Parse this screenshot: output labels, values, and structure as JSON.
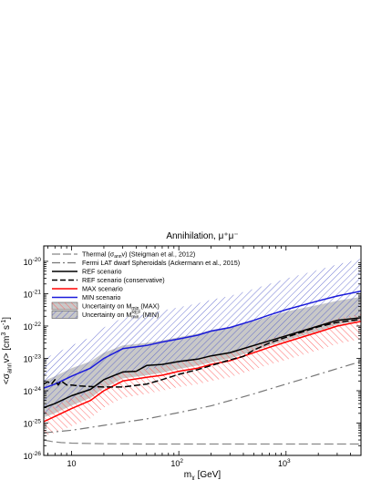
{
  "chart_data": {
    "type": "line",
    "title": "Annihilation, μ⁺μ⁻",
    "xlabel": "m",
    "xlabel_sub": "χ",
    "xlabel_unit": " [GeV]",
    "ylabel": "<σ",
    "ylabel_sub": "ann",
    "ylabel_mid": "v> [cm",
    "ylabel_sup1": "3",
    "ylabel_mid2": " s",
    "ylabel_sup2": "-1",
    "ylabel_end": "]",
    "x_scale": "log",
    "y_scale": "log",
    "xlim": [
      5.5,
      5000
    ],
    "ylim": [
      1e-26,
      3e-20
    ],
    "x_ticks": [
      {
        "value": 10,
        "base": "10",
        "exp": ""
      },
      {
        "value": 100,
        "base": "10",
        "exp": "2"
      },
      {
        "value": 1000,
        "base": "10",
        "exp": "3"
      }
    ],
    "y_ticks": [
      {
        "value": 1e-26,
        "base": "10",
        "exp": "-26"
      },
      {
        "value": 1e-25,
        "base": "10",
        "exp": "-25"
      },
      {
        "value": 1e-24,
        "base": "10",
        "exp": "-24"
      },
      {
        "value": 1e-23,
        "base": "10",
        "exp": "-23"
      },
      {
        "value": 1e-22,
        "base": "10",
        "exp": "-22"
      },
      {
        "value": 1e-21,
        "base": "10",
        "exp": "-21"
      },
      {
        "value": 1e-20,
        "base": "10",
        "exp": "-20"
      }
    ],
    "legend_position": "top-left",
    "colors": {
      "thermal": "#888888",
      "fermi": "#777777",
      "ref": "#000000",
      "ref_cons": "#000000",
      "max": "#ff0000",
      "min": "#1a1adb",
      "band_fill": "#c8c8c8",
      "hatch_red": "#ff5a5a",
      "hatch_blue": "#4b55c8"
    },
    "legend": [
      {
        "id": "thermal",
        "main": "Thermal (σ",
        "sub": "ann",
        "tail": "v) (Steigman et al., 2012)"
      },
      {
        "id": "fermi",
        "main": "Fermi LAT dwarf Spheroidals (Ackermann et al., 2015)"
      },
      {
        "id": "ref",
        "main": "REF scenario"
      },
      {
        "id": "ref_cons",
        "main": "REF scenario (conservative)"
      },
      {
        "id": "max",
        "main": "MAX scenario"
      },
      {
        "id": "min",
        "main": "MIN scenario"
      },
      {
        "id": "unc_max",
        "main": "Uncertainty on M",
        "sub": "min",
        "tail": "  (MAX)"
      },
      {
        "id": "unc_min",
        "main": "Uncertainty on M",
        "sub": "min",
        "sup": "REF",
        "tail": "  (MIN)"
      }
    ],
    "series": [
      {
        "id": "thermal",
        "x": [
          5.5,
          6.5,
          8,
          10,
          20,
          50,
          100,
          300,
          1000,
          5000
        ],
        "y": [
          3e-26,
          2.7e-26,
          2.5e-26,
          2.4e-26,
          2.3e-26,
          2.25e-26,
          2.25e-26,
          2.25e-26,
          2.25e-26,
          2.25e-26
        ]
      },
      {
        "id": "fermi",
        "x": [
          5.5,
          10,
          20,
          50,
          100,
          200,
          500,
          1000,
          2000,
          5000
        ],
        "y": [
          5e-26,
          6e-26,
          8.5e-26,
          1.35e-25,
          2.1e-25,
          3.4e-25,
          8e-25,
          1.6e-24,
          3.2e-24,
          8e-24
        ]
      },
      {
        "id": "ref",
        "x": [
          5.5,
          7,
          10,
          15,
          20,
          30,
          40,
          50,
          70,
          100,
          150,
          200,
          300,
          500,
          700,
          1000,
          2000,
          3000,
          5000
        ],
        "y": [
          3e-25,
          4e-25,
          7e-25,
          1.1e-24,
          2.2e-24,
          3.8e-24,
          4e-24,
          6e-24,
          6.5e-24,
          8e-24,
          9.5e-24,
          1.2e-23,
          1.5e-23,
          2.5e-23,
          3.5e-23,
          5e-23,
          1e-22,
          1.5e-22,
          1.8e-22
        ]
      },
      {
        "id": "ref_cons",
        "x": [
          5.5,
          6,
          6.5,
          7,
          7.5,
          8,
          9,
          10,
          12,
          15,
          20,
          30,
          50,
          70,
          100,
          150,
          200,
          300,
          400,
          500,
          700,
          1000,
          2000,
          3000,
          5000
        ],
        "y": [
          1.6e-24,
          1.9e-24,
          1.6e-24,
          2.2e-24,
          1.5e-24,
          2e-24,
          1.5e-24,
          1.5e-24,
          1.4e-24,
          1.35e-24,
          1.3e-24,
          1.3e-24,
          1.6e-24,
          2.2e-24,
          3.2e-24,
          4.5e-24,
          6e-24,
          9e-24,
          1.15e-23,
          1.8e-23,
          3e-23,
          4.5e-23,
          9.5e-23,
          1.3e-22,
          1.6e-22
        ]
      },
      {
        "id": "max",
        "x": [
          5.5,
          7,
          10,
          15,
          20,
          30,
          50,
          70,
          100,
          150,
          200,
          300,
          500,
          700,
          1000,
          2000,
          3000,
          5000
        ],
        "y": [
          1.1e-25,
          1.6e-25,
          2.8e-25,
          5e-25,
          1e-24,
          2e-24,
          2.6e-24,
          3e-24,
          4e-24,
          5e-24,
          6.5e-24,
          8.5e-24,
          1.5e-23,
          2.2e-23,
          3.2e-23,
          6.5e-23,
          1e-22,
          1.4e-22
        ]
      },
      {
        "id": "min",
        "x": [
          5.5,
          7,
          10,
          15,
          20,
          30,
          50,
          70,
          100,
          150,
          200,
          300,
          500,
          700,
          1000,
          2000,
          3000,
          5000
        ],
        "y": [
          1.2e-24,
          1.6e-24,
          2.8e-24,
          5e-24,
          1e-23,
          2e-23,
          2.5e-23,
          3.2e-23,
          4e-23,
          5.2e-23,
          7e-23,
          9e-23,
          1.5e-22,
          2.2e-22,
          3.2e-22,
          6e-22,
          8.5e-22,
          1.2e-21
        ]
      }
    ],
    "bands": [
      {
        "id": "band_grey",
        "x": [
          5.5,
          7,
          10,
          15,
          20,
          30,
          50,
          70,
          100,
          150,
          200,
          300,
          500,
          700,
          1000,
          2000,
          3000,
          5000
        ],
        "lower": [
          1.5e-25,
          2e-25,
          3.5e-25,
          6e-25,
          1.2e-24,
          2.4e-24,
          3e-24,
          3.6e-24,
          4.7e-24,
          6e-24,
          7.5e-24,
          1e-23,
          1.7e-23,
          2.5e-23,
          3.6e-23,
          7e-23,
          1.1e-22,
          1.5e-22
        ],
        "upper": [
          2e-24,
          2.8e-24,
          5e-24,
          8e-24,
          1.5e-23,
          2.5e-23,
          3e-23,
          3.6e-23,
          4.5e-23,
          5.8e-23,
          7.5e-23,
          9.5e-23,
          1.4e-22,
          2e-22,
          2.8e-22,
          4.5e-22,
          6e-22,
          8e-22
        ]
      },
      {
        "id": "band_red",
        "x": [
          5.5,
          7,
          10,
          15,
          20,
          30,
          50,
          70,
          100,
          150,
          200,
          300,
          500,
          700,
          1000,
          2000,
          3000,
          5000
        ],
        "lower": [
          4e-26,
          5e-26,
          8e-26,
          1.4e-25,
          3e-25,
          6e-25,
          8e-25,
          1e-24,
          1.3e-24,
          1.6e-24,
          2e-24,
          2.6e-24,
          4.5e-24,
          6.5e-24,
          9e-24,
          1.8e-23,
          2.8e-23,
          4e-23
        ],
        "upper": [
          2.5e-25,
          3.5e-25,
          6e-25,
          1e-24,
          2e-24,
          3.8e-24,
          5e-24,
          5.8e-24,
          7.5e-24,
          9.5e-24,
          1.2e-23,
          1.6e-23,
          2.7e-23,
          4e-23,
          5.5e-23,
          1.1e-22,
          1.7e-22,
          2.4e-22
        ]
      },
      {
        "id": "band_blue",
        "x": [
          5.5,
          7,
          10,
          15,
          20,
          30,
          50,
          70,
          100,
          150,
          200,
          300,
          500,
          700,
          1000,
          2000,
          3000,
          5000
        ],
        "lower": [
          2e-25,
          2.8e-25,
          5e-25,
          9e-25,
          1.8e-24,
          3.5e-24,
          4.5e-24,
          5.5e-24,
          7e-24,
          9e-24,
          1.2e-23,
          1.6e-23,
          2.6e-23,
          3.8e-23,
          5.5e-23,
          1.1e-22,
          1.6e-22,
          2.2e-22
        ],
        "upper": [
          1e-23,
          1.4e-23,
          2.5e-23,
          4.5e-23,
          9e-23,
          1.8e-22,
          2.3e-22,
          3e-22,
          3.8e-22,
          5e-22,
          6.5e-22,
          8.5e-22,
          1.4e-21,
          2e-21,
          2.9e-21,
          5.5e-21,
          8e-21,
          1.2e-20
        ]
      }
    ]
  }
}
